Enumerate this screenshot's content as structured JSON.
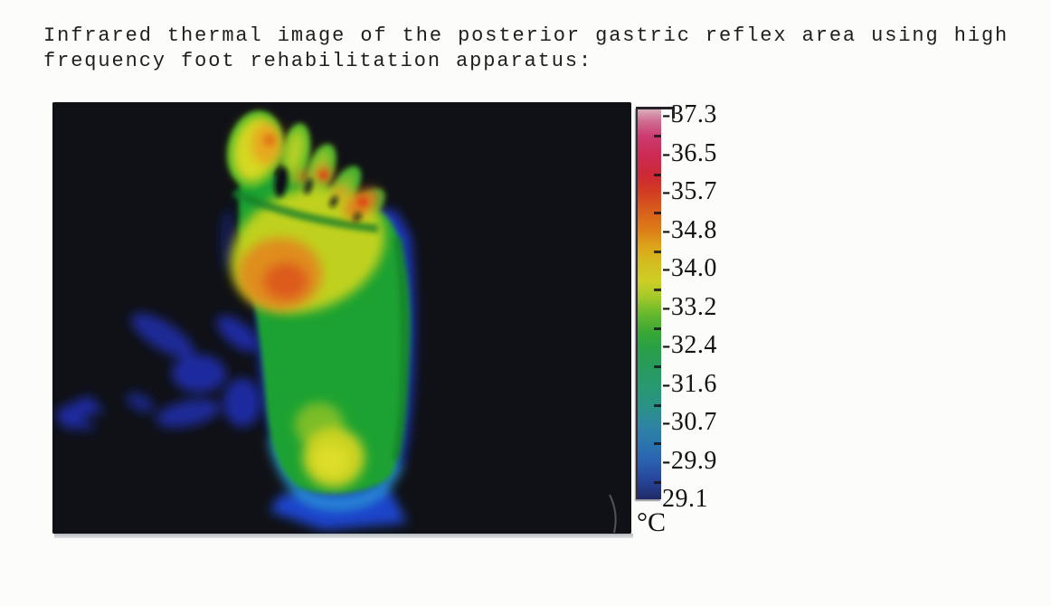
{
  "caption": {
    "lines": [
      "Infrared thermal image of the posterior gastric reflex area using high",
      "frequency foot rehabilitation apparatus:"
    ]
  },
  "figure": {
    "description": "Infrared thermogram of a foot sole on a black background with cool blue shadows, warm forefoot and toes, and a warm spot on the heel",
    "scale": {
      "unit": "°C",
      "max": 37.3,
      "min": 29.1,
      "labels": [
        "37.3",
        "36.5",
        "35.7",
        "34.8",
        "34.0",
        "33.2",
        "32.4",
        "31.6",
        "30.7",
        "29.9",
        "29.1"
      ],
      "gradient_top_to_bottom": [
        "#d9aeb8",
        "#cc3a6e",
        "#cc2a34",
        "#d85e1c",
        "#dda319",
        "#cdce26",
        "#6cba2c",
        "#2aa046",
        "#279a71",
        "#2d85a2",
        "#2a62b2",
        "#1f2a64"
      ]
    },
    "palette": {
      "background_black": "#101116",
      "foot_body_green": "#1ea233",
      "forefoot_yellow": "#c6d31f",
      "hot_spot_orange": "#e2891a",
      "hot_spot_red": "#dd5c1d",
      "heel_yellow": "#ccd321",
      "cool_shadow_blue": "#1c2fae",
      "cool_rim_cyan": "#2fa8d8"
    }
  }
}
